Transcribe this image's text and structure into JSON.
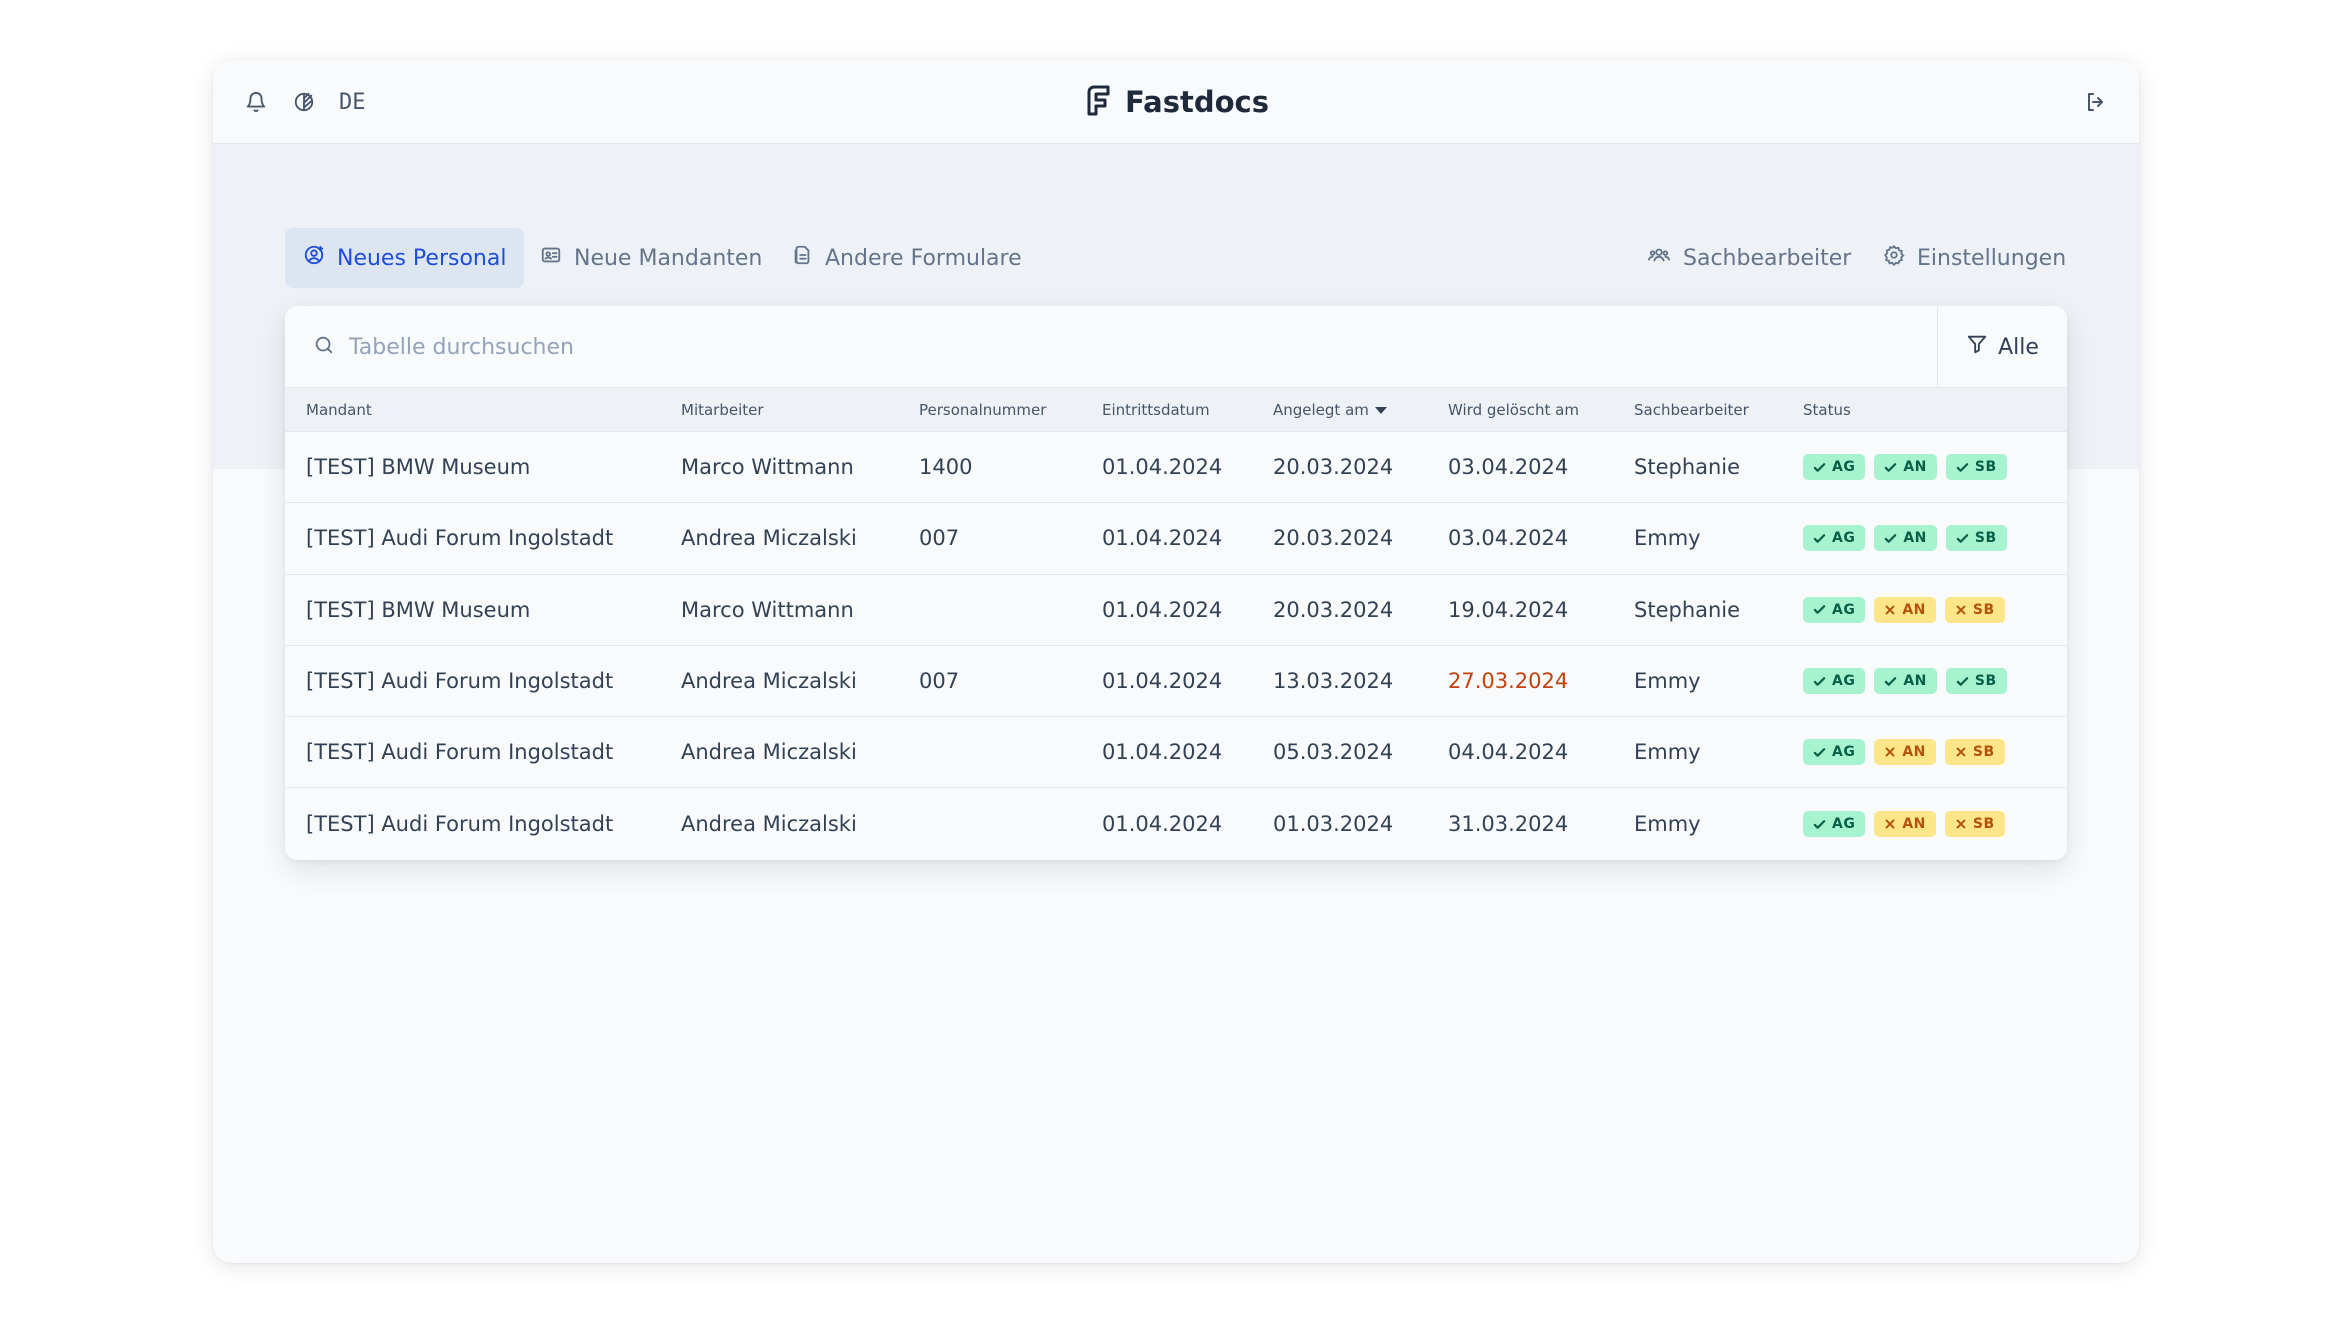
{
  "header": {
    "brand": "Fastdocs",
    "language": "DE",
    "icons": [
      "bell-icon",
      "theme-icon",
      "logout-icon",
      "fastdocs-logo-icon"
    ]
  },
  "tabs": [
    {
      "label": "Neues Personal",
      "icon": "user-circle-icon",
      "active": true
    },
    {
      "label": "Neue Mandanten",
      "icon": "id-card-icon",
      "active": false
    },
    {
      "label": "Andere Formulare",
      "icon": "documents-icon",
      "active": false
    }
  ],
  "right_tabs": [
    {
      "label": "Sachbearbeiter",
      "icon": "users-icon"
    },
    {
      "label": "Einstellungen",
      "icon": "gear-icon"
    }
  ],
  "search": {
    "placeholder": "Tabelle durchsuchen",
    "value": ""
  },
  "filter": {
    "label": "Alle",
    "icon": "filter-icon"
  },
  "table": {
    "columns": [
      "Mandant",
      "Mitarbeiter",
      "Personalnummer",
      "Eintrittsdatum",
      "Angelegt am",
      "Wird gelöscht am",
      "Sachbearbeiter",
      "Status"
    ],
    "sorted_column": "Angelegt am",
    "sort_direction": "descending",
    "rows": [
      {
        "mandant": "[TEST] BMW Museum",
        "mitarbeiter": "Marco Wittmann",
        "personalnummer": "1400",
        "eintritt": "01.04.2024",
        "angelegt": "20.03.2024",
        "geloescht": "03.04.2024",
        "geloescht_warning": false,
        "sachbearbeiter": "Stephanie",
        "status": [
          {
            "label": "AG",
            "ok": true
          },
          {
            "label": "AN",
            "ok": true
          },
          {
            "label": "SB",
            "ok": true
          }
        ]
      },
      {
        "mandant": "[TEST] Audi Forum Ingolstadt",
        "mitarbeiter": "Andrea Miczalski",
        "personalnummer": "007",
        "eintritt": "01.04.2024",
        "angelegt": "20.03.2024",
        "geloescht": "03.04.2024",
        "geloescht_warning": false,
        "sachbearbeiter": "Emmy",
        "status": [
          {
            "label": "AG",
            "ok": true
          },
          {
            "label": "AN",
            "ok": true
          },
          {
            "label": "SB",
            "ok": true
          }
        ]
      },
      {
        "mandant": "[TEST] BMW Museum",
        "mitarbeiter": "Marco Wittmann",
        "personalnummer": "",
        "eintritt": "01.04.2024",
        "angelegt": "20.03.2024",
        "geloescht": "19.04.2024",
        "geloescht_warning": false,
        "sachbearbeiter": "Stephanie",
        "status": [
          {
            "label": "AG",
            "ok": true
          },
          {
            "label": "AN",
            "ok": false
          },
          {
            "label": "SB",
            "ok": false
          }
        ]
      },
      {
        "mandant": "[TEST] Audi Forum Ingolstadt",
        "mitarbeiter": "Andrea Miczalski",
        "personalnummer": "007",
        "eintritt": "01.04.2024",
        "angelegt": "13.03.2024",
        "geloescht": "27.03.2024",
        "geloescht_warning": true,
        "sachbearbeiter": "Emmy",
        "status": [
          {
            "label": "AG",
            "ok": true
          },
          {
            "label": "AN",
            "ok": true
          },
          {
            "label": "SB",
            "ok": true
          }
        ]
      },
      {
        "mandant": "[TEST] Audi Forum Ingolstadt",
        "mitarbeiter": "Andrea Miczalski",
        "personalnummer": "",
        "eintritt": "01.04.2024",
        "angelegt": "05.03.2024",
        "geloescht": "04.04.2024",
        "geloescht_warning": false,
        "sachbearbeiter": "Emmy",
        "status": [
          {
            "label": "AG",
            "ok": true
          },
          {
            "label": "AN",
            "ok": false
          },
          {
            "label": "SB",
            "ok": false
          }
        ]
      },
      {
        "mandant": "[TEST] Audi Forum Ingolstadt",
        "mitarbeiter": "Andrea Miczalski",
        "personalnummer": "",
        "eintritt": "01.04.2024",
        "angelegt": "01.03.2024",
        "geloescht": "31.03.2024",
        "geloescht_warning": false,
        "sachbearbeiter": "Emmy",
        "status": [
          {
            "label": "AG",
            "ok": true
          },
          {
            "label": "AN",
            "ok": false
          },
          {
            "label": "SB",
            "ok": false
          }
        ]
      }
    ]
  },
  "colors": {
    "accent": "#1d4ed8",
    "badge_ok_bg": "#a7f3d0",
    "badge_ok_text": "#065f46",
    "badge_warn_bg": "#fde68a",
    "badge_warn_text": "#b45309",
    "date_warning": "#c2410c"
  }
}
